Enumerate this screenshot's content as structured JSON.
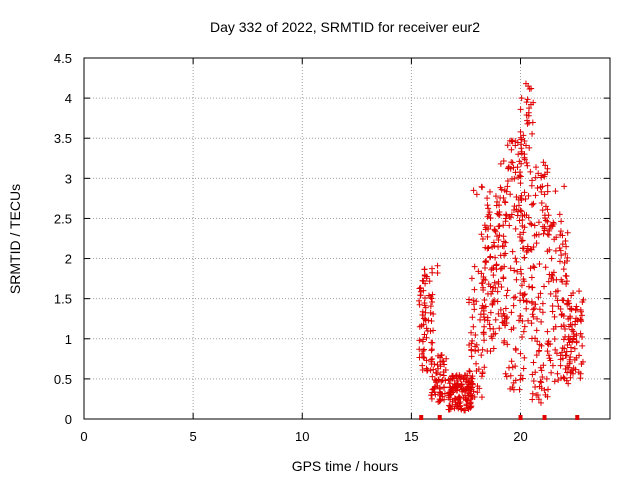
{
  "chart_data": {
    "type": "scatter",
    "title": "Day 332 of 2022, SRMTID for receiver eur2",
    "xlabel": "GPS time / hours",
    "ylabel": "SRMTID / TECUs",
    "xlim": [
      0,
      24.1
    ],
    "ylim": [
      0,
      4.5
    ],
    "x_ticks": [
      0,
      5,
      10,
      15,
      20
    ],
    "x_tick_labels": [
      "0",
      "5",
      "10",
      "15",
      "20"
    ],
    "y_ticks": [
      0,
      0.5,
      1,
      1.5,
      2,
      2.5,
      3,
      3.5,
      4,
      4.5
    ],
    "y_tick_labels": [
      "0",
      "0.5",
      "1",
      "1.5",
      "2",
      "2.5",
      "3",
      "3.5",
      "4",
      "4.5"
    ],
    "grid": true,
    "marker": "+",
    "series": [
      {
        "name": "SRMTID",
        "color": "#e00000",
        "clusters": [
          {
            "x_range": [
              15.35,
              16.0
            ],
            "y_range": [
              0.6,
              1.9
            ],
            "count": 70
          },
          {
            "x_range": [
              15.9,
              16.6
            ],
            "y_range": [
              0.2,
              0.8
            ],
            "count": 60
          },
          {
            "x_range": [
              16.7,
              17.8
            ],
            "y_range": [
              0.1,
              0.55
            ],
            "count": 140
          },
          {
            "x_range": [
              17.6,
              18.4
            ],
            "y_range": [
              0.25,
              1.9
            ],
            "count": 60
          },
          {
            "x_range": [
              18.2,
              19.3
            ],
            "y_range": [
              0.8,
              2.9
            ],
            "count": 120
          },
          {
            "x_range": [
              19.2,
              20.2
            ],
            "y_range": [
              0.3,
              3.5
            ],
            "count": 130
          },
          {
            "x_range": [
              20.0,
              20.6
            ],
            "y_range": [
              1.0,
              4.2
            ],
            "count": 60
          },
          {
            "x_range": [
              20.5,
              21.3
            ],
            "y_range": [
              0.2,
              3.2
            ],
            "count": 100
          },
          {
            "x_range": [
              21.3,
              22.2
            ],
            "y_range": [
              0.4,
              2.5
            ],
            "count": 100
          },
          {
            "x_range": [
              22.2,
              22.9
            ],
            "y_range": [
              0.5,
              1.6
            ],
            "count": 70
          }
        ],
        "points": [
          [
            20.25,
            4.18
          ],
          [
            20.35,
            4.15
          ],
          [
            20.28,
            3.95
          ],
          [
            20.38,
            3.78
          ],
          [
            20.3,
            3.72
          ],
          [
            20.45,
            3.08
          ],
          [
            20.4,
            3.38
          ],
          [
            20.25,
            3.41
          ],
          [
            19.6,
            3.47
          ],
          [
            19.1,
            3.18
          ],
          [
            19.55,
            3.12
          ],
          [
            19.4,
            2.9
          ],
          [
            21.05,
            3.2
          ],
          [
            21.12,
            3.05
          ],
          [
            21.0,
            2.9
          ],
          [
            20.78,
            2.88
          ],
          [
            21.6,
            2.84
          ],
          [
            22.0,
            2.9
          ],
          [
            17.85,
            2.85
          ],
          [
            18.0,
            2.8
          ],
          [
            19.0,
            2.55
          ],
          [
            20.0,
            2.6
          ],
          [
            21.8,
            2.55
          ],
          [
            16.2,
            1.91
          ],
          [
            15.55,
            1.72
          ],
          [
            15.55,
            1.6
          ],
          [
            16.2,
            1.82
          ],
          [
            17.9,
            1.9
          ]
        ],
        "baseline_markers_x": [
          15.45,
          16.3,
          20.0,
          21.1,
          22.6
        ]
      }
    ]
  }
}
